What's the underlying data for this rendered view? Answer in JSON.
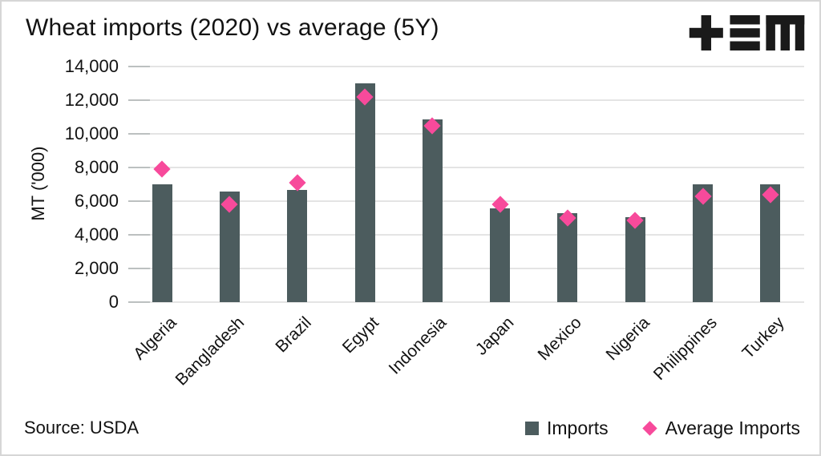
{
  "header": {
    "title": "Wheat imports (2020) vs average (5Y)",
    "logo_alt": "TEM"
  },
  "colors": {
    "bar": "#4c5c5e",
    "marker": "#f74a9b",
    "text": "#121212",
    "gridline": "#e4e4e4",
    "tick": "#bcc0c0",
    "logo": "#1a1a1a"
  },
  "chart_data": {
    "type": "bar",
    "title": "Wheat imports (2020) vs average (5Y)",
    "categories": [
      "Algeria",
      "Bangladesh",
      "Brazil",
      "Egypt",
      "Indonesia",
      "Japan",
      "Mexico",
      "Nigeria",
      "Philippines",
      "Turkey"
    ],
    "series": [
      {
        "name": "Imports",
        "type": "bar",
        "values": [
          7000,
          6550,
          6650,
          13000,
          10850,
          5550,
          5300,
          5050,
          7000,
          7000
        ]
      },
      {
        "name": "Average Imports",
        "type": "scatter",
        "marker": "diamond",
        "values": [
          7900,
          5800,
          7100,
          12200,
          10500,
          5800,
          5000,
          4850,
          6300,
          6400
        ]
      }
    ],
    "xlabel": "",
    "ylabel": "MT ('000)",
    "ylim": [
      0,
      14000
    ],
    "ytick_step": 2000,
    "ytick_labels": [
      "0",
      "2,000",
      "4,000",
      "6,000",
      "8,000",
      "10,000",
      "12,000",
      "14,000"
    ],
    "grid": "horizontal",
    "legend_position": "bottom-right"
  },
  "legend": {
    "items": [
      {
        "label": "Imports",
        "marker": "square"
      },
      {
        "label": "Average Imports",
        "marker": "diamond"
      }
    ]
  },
  "footer": {
    "source": "Source: USDA"
  }
}
